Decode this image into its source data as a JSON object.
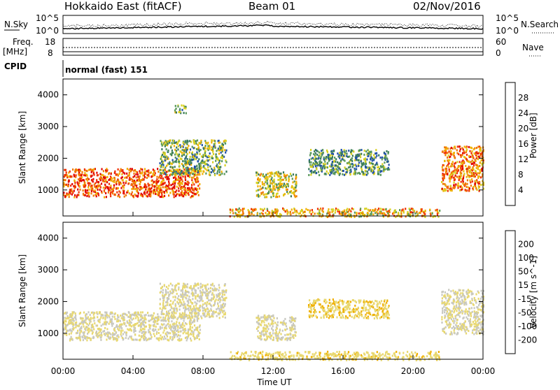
{
  "header": {
    "title": "Hokkaido East (fitACF)",
    "beam": "Beam 01",
    "date": "02/Nov/2016"
  },
  "noise_panel": {
    "left_label": "N.Sky",
    "right_label": "N.Search",
    "y_top": "10^5",
    "y_bottom": "10^0"
  },
  "freq_panel": {
    "left_label_1": "Freq.",
    "left_label_2": "[MHz]",
    "y_top_left": "18",
    "y_bottom_left": "8",
    "y_top_right": "60",
    "y_bottom_right": "0",
    "right_label": "Nave"
  },
  "cpid": {
    "label": "CPID",
    "value": "normal (fast) 151"
  },
  "time_axis": {
    "title": "Time UT",
    "ticks": [
      "00:00",
      "04:00",
      "08:00",
      "12:00",
      "16:00",
      "20:00",
      "00:00"
    ]
  },
  "chart_data": [
    {
      "type": "heatmap",
      "title": "",
      "xlabel": "Time UT",
      "ylabel": "Slant Range [km]",
      "x_ticks": [
        "00:00",
        "04:00",
        "08:00",
        "12:00",
        "16:00",
        "20:00",
        "00:00"
      ],
      "y_ticks": [
        1000,
        2000,
        3000,
        4000
      ],
      "ylim": [
        180,
        4500
      ],
      "colorbar_label": "Power [dB]",
      "colorbar_ticks": [
        "28",
        "24",
        "20",
        "16",
        "12",
        "8",
        "4"
      ],
      "colorbar_colors": [
        "#0000e0",
        "#2050a8",
        "#3a7a5a",
        "#5a9a5a",
        "#d8d020",
        "#f0b000",
        "#f07800",
        "#f03000",
        "#e00000"
      ],
      "regions": [
        {
          "t_start": 0.0,
          "t_end": 7.8,
          "r_low": 800,
          "r_high": 1700,
          "power_db": 26
        },
        {
          "t_start": 5.5,
          "t_end": 9.3,
          "r_low": 1500,
          "r_high": 2600,
          "power_db": 12
        },
        {
          "t_start": 6.3,
          "t_end": 7.0,
          "r_low": 3450,
          "r_high": 3700,
          "power_db": 12
        },
        {
          "t_start": 11.0,
          "t_end": 13.3,
          "r_low": 800,
          "r_high": 1600,
          "power_db": 16
        },
        {
          "t_start": 14.0,
          "t_end": 18.6,
          "r_low": 1500,
          "r_high": 2300,
          "power_db": 10
        },
        {
          "t_start": 21.6,
          "t_end": 24.0,
          "r_low": 1000,
          "r_high": 2400,
          "power_db": 24
        },
        {
          "t_start": 9.5,
          "t_end": 21.5,
          "r_low": 180,
          "r_high": 450,
          "power_db": 20
        }
      ]
    },
    {
      "type": "heatmap",
      "title": "",
      "xlabel": "Time UT",
      "ylabel": "Slant Range [km]",
      "x_ticks": [
        "00:00",
        "04:00",
        "08:00",
        "12:00",
        "16:00",
        "20:00",
        "00:00"
      ],
      "y_ticks": [
        1000,
        2000,
        3000,
        4000
      ],
      "ylim": [
        180,
        4500
      ],
      "colorbar_label": "Velocity [m s^-1]",
      "colorbar_ticks": [
        "200",
        "100",
        "50",
        "15",
        "-15",
        "-50",
        "-100",
        "-200"
      ],
      "colorbar_colors": [
        "#e00000",
        "#f03000",
        "#f07800",
        "#f0b000",
        "#e8d870",
        "#c8c8c0",
        "#68c038",
        "#3a7a5a",
        "#2050a8",
        "#0000e0"
      ],
      "regions": [
        {
          "t_start": 0.0,
          "t_end": 7.8,
          "r_low": 800,
          "r_high": 1700,
          "velocity": 0
        },
        {
          "t_start": 5.5,
          "t_end": 9.3,
          "r_low": 1500,
          "r_high": 2600,
          "velocity": 0
        },
        {
          "t_start": 11.0,
          "t_end": 13.3,
          "r_low": 800,
          "r_high": 1600,
          "velocity": 0
        },
        {
          "t_start": 14.0,
          "t_end": 18.6,
          "r_low": 1500,
          "r_high": 2100,
          "velocity": -50
        },
        {
          "t_start": 21.6,
          "t_end": 24.0,
          "r_low": 1000,
          "r_high": 2400,
          "velocity": 0
        },
        {
          "t_start": 9.5,
          "t_end": 21.5,
          "r_low": 180,
          "r_high": 450,
          "velocity": -40
        }
      ]
    }
  ]
}
